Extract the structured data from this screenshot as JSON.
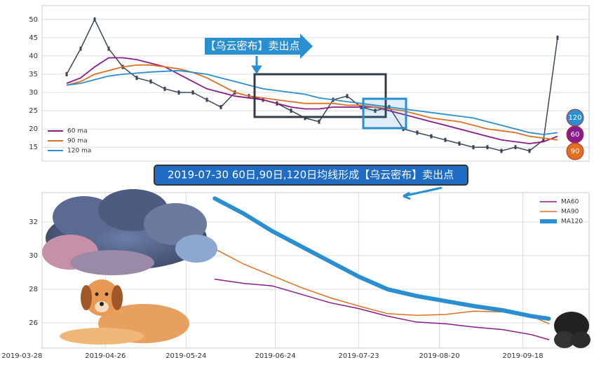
{
  "chart_data": [
    {
      "type": "line",
      "annotation": "【乌云密布】卖出点",
      "categories": [
        null,
        null,
        null,
        null,
        null,
        null,
        null,
        null,
        null,
        null,
        null,
        null,
        null,
        null,
        null,
        null,
        null,
        null,
        null,
        null,
        null,
        null,
        null,
        null,
        null,
        null,
        null,
        null,
        null,
        null,
        null,
        null,
        null,
        null,
        null,
        null
      ],
      "values": [
        35,
        42,
        50,
        42,
        37,
        34,
        33,
        31,
        30,
        30,
        28,
        26,
        30,
        29,
        28,
        27,
        25,
        23,
        22,
        28,
        29,
        26,
        25,
        26,
        20,
        19,
        18,
        17,
        16,
        15,
        15,
        14,
        15,
        14,
        17,
        45
      ],
      "color": "#3a4658",
      "series": [
        {
          "name": "60 ma",
          "color": "#8b1a8b",
          "end_label": "60",
          "values": [
            32.5,
            34,
            37,
            39.5,
            39.5,
            39,
            38,
            37,
            35,
            33,
            31,
            30,
            29,
            28.5,
            28,
            27,
            26,
            25.5,
            25.5,
            26,
            26,
            26,
            26,
            25,
            24,
            23,
            22,
            21,
            20,
            19,
            18,
            17,
            16.5,
            16,
            16.5,
            18
          ]
        },
        {
          "name": "90 ma",
          "color": "#e07020",
          "end_label": "90",
          "values": [
            32,
            33,
            35,
            36,
            37,
            37.5,
            37.5,
            37,
            36.5,
            35.5,
            34,
            32,
            30,
            29,
            28.5,
            28,
            27.5,
            27,
            27,
            27,
            26.5,
            26.5,
            26,
            25.5,
            25,
            24,
            23,
            22.5,
            22,
            21,
            20,
            19.5,
            19,
            18,
            17.5,
            17
          ]
        },
        {
          "name": "120 ma",
          "color": "#2a8fd0",
          "end_label": "120",
          "values": [
            32,
            32.5,
            33.5,
            34.5,
            35,
            35.3,
            35.6,
            35.8,
            36,
            35.5,
            35,
            34,
            33,
            32,
            31,
            30.5,
            30,
            29.5,
            28.5,
            28,
            27.5,
            27,
            26.5,
            26,
            25.5,
            25,
            24.5,
            24,
            23.5,
            23,
            22,
            21,
            20,
            19,
            18.5,
            19
          ]
        }
      ],
      "ylim": [
        11.2,
        53.8
      ],
      "yticks": [
        15,
        20,
        25,
        30,
        35,
        40,
        45,
        50
      ],
      "grid": true
    },
    {
      "type": "line",
      "title": "2019-07-30 60日,90日,120日均线形成【乌云密布】卖出点",
      "x": [
        "2019-06-03",
        "2019-06-13",
        "2019-06-23",
        "2019-07-03",
        "2019-07-13",
        "2019-07-23",
        "2019-08-02",
        "2019-08-12",
        "2019-08-22",
        "2019-09-01",
        "2019-09-11",
        "2019-09-21",
        "2019-09-27"
      ],
      "series": [
        {
          "name": "MA60",
          "color": "#8b1a8b",
          "width": 1.5,
          "values": [
            28.6,
            28.35,
            28.2,
            27.7,
            27.2,
            26.85,
            26.4,
            26.05,
            25.95,
            25.75,
            25.6,
            25.3,
            25.0
          ]
        },
        {
          "name": "MA90",
          "color": "#e07020",
          "width": 1.5,
          "values": [
            30.4,
            29.5,
            28.8,
            28.1,
            27.5,
            27.0,
            26.55,
            26.45,
            26.5,
            26.7,
            26.65,
            26.4,
            25.95
          ]
        },
        {
          "name": "MA120",
          "color": "#2a8fd0",
          "width": 6,
          "values": [
            33.4,
            32.5,
            31.45,
            30.55,
            29.65,
            28.75,
            28.0,
            27.6,
            27.3,
            27.0,
            26.75,
            26.4,
            26.25
          ]
        }
      ],
      "xlim": [
        "2019-04-04",
        "2019-10-11"
      ],
      "xticks": [
        "2019-03-28",
        "2019-04-26",
        "2019-05-24",
        "2019-06-24",
        "2019-07-23",
        "2019-08-20",
        "2019-09-18"
      ],
      "ylim": [
        24.5,
        33.75
      ],
      "yticks": [
        26,
        28,
        30,
        32
      ],
      "grid": true
    }
  ]
}
